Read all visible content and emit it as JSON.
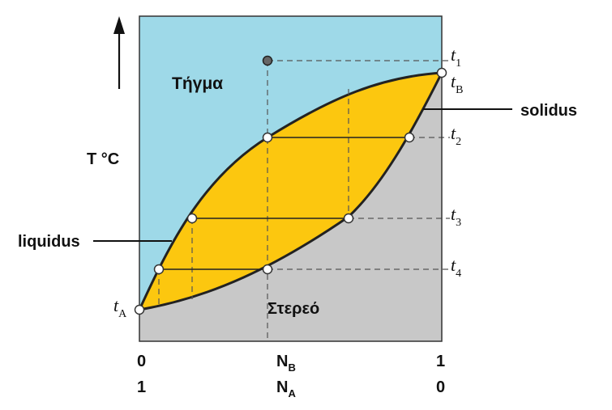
{
  "diagram": {
    "regions": {
      "liquid_label": "Τήγμα",
      "solid_label": "Στερεό"
    },
    "curves": {
      "liquidus_label": "liquidus",
      "solidus_label": "solidus"
    },
    "y_axis_label": "T °C",
    "temperatures": [
      {
        "base": "t",
        "sub": "1"
      },
      {
        "base": "t",
        "sub": "B"
      },
      {
        "base": "t",
        "sub": "2"
      },
      {
        "base": "t",
        "sub": "3"
      },
      {
        "base": "t",
        "sub": "4"
      },
      {
        "base": "t",
        "sub": "A"
      }
    ],
    "x_axis": {
      "nb_label": "N",
      "nb_sub": "B",
      "na_label": "N",
      "na_sub": "A",
      "nb_left": "0",
      "nb_right": "1",
      "na_left": "1",
      "na_right": "0"
    },
    "colors": {
      "liquid": "#9ed9e8",
      "two_phase": "#fcc70f",
      "solid": "#c8c8c8",
      "outline": "#222222",
      "marker_filled": "#666666"
    }
  }
}
